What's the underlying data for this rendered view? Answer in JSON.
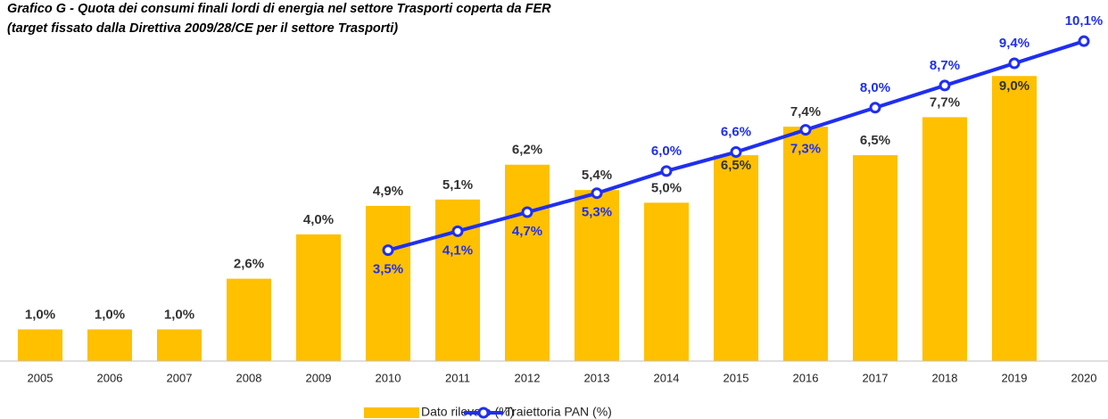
{
  "chart_data": {
    "type": "bar",
    "title": "Grafico G -  Quota dei consumi finali lordi di energia nel settore Trasporti coperta da FER",
    "subtitle": "(target fissato dalla Direttiva 2009/28/CE per il settore Trasporti)",
    "categories": [
      "2005",
      "2006",
      "2007",
      "2008",
      "2009",
      "2010",
      "2011",
      "2012",
      "2013",
      "2014",
      "2015",
      "2016",
      "2017",
      "2018",
      "2019",
      "2020"
    ],
    "ylim": [
      0,
      11.4
    ],
    "series": [
      {
        "name": "Dato rilevato (%)",
        "color": "#ffc000",
        "type": "bar",
        "values": [
          1.0,
          1.0,
          1.0,
          2.6,
          4.0,
          4.9,
          5.1,
          6.2,
          5.4,
          5.0,
          6.5,
          7.4,
          6.5,
          7.7,
          9.0,
          null
        ],
        "value_labels": [
          "1,0%",
          "1,0%",
          "1,0%",
          "2,6%",
          "4,0%",
          "4,9%",
          "5,1%",
          "6,2%",
          "5,4%",
          "5,0%",
          "6,5%",
          "7,4%",
          "6,5%",
          "7,7%",
          "9,0%",
          null
        ]
      },
      {
        "name": "Traiettoria PAN (%)",
        "color": "#1f2ff0",
        "type": "line",
        "values": [
          null,
          null,
          null,
          null,
          null,
          3.5,
          4.1,
          4.7,
          5.3,
          6.0,
          6.6,
          7.3,
          8.0,
          8.7,
          9.4,
          10.1
        ],
        "value_labels": [
          null,
          null,
          null,
          null,
          null,
          "3,5%",
          "4,1%",
          "4,7%",
          "5,3%",
          "6,0%",
          "6,6%",
          "7,3%",
          "8,0%",
          "8,7%",
          "9,4%",
          "10,1%"
        ]
      }
    ]
  }
}
